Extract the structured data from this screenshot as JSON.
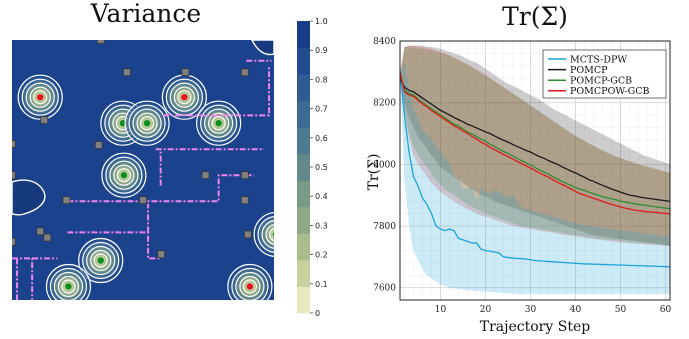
{
  "chart_data": [
    {
      "type": "heatmap",
      "title": "Variance",
      "colorbar": {
        "min": 0.0,
        "max": 1.0,
        "ticks": [
          "0",
          "0.1",
          "0.2",
          "0.3",
          "0.4",
          "0.5",
          "0.6",
          "0.7",
          "0.8",
          "0.9",
          "1.0"
        ],
        "colors": [
          "#e6e8bd",
          "#c6d19f",
          "#a9bc8c",
          "#8ea985",
          "#789a86",
          "#63898a",
          "#4f798e",
          "#3d6a92",
          "#2e5b94",
          "#214c90",
          "#173d86"
        ]
      },
      "background_value": 0.95,
      "grid_x": [
        0,
        100
      ],
      "grid_y": [
        0,
        100
      ],
      "colors": {
        "field": "#1b428c",
        "contour": "#ffffff",
        "path": "#ee82ee",
        "sensor": "#808080",
        "target_red": "#e8141b",
        "target_green": "#0b8f1c"
      },
      "low_variance_peaks": [
        {
          "x": 11.2,
          "y": 78,
          "marker": "red"
        },
        {
          "x": 44,
          "y": 68,
          "marker": "green"
        },
        {
          "x": 53.6,
          "y": 68,
          "marker": "green"
        },
        {
          "x": 68.4,
          "y": 78,
          "marker": "red"
        },
        {
          "x": 82,
          "y": 68,
          "marker": "green"
        },
        {
          "x": 44.4,
          "y": 48,
          "marker": "green"
        },
        {
          "x": 35.2,
          "y": 15.2,
          "marker": "green"
        },
        {
          "x": 22.4,
          "y": 5.2,
          "marker": "green"
        },
        {
          "x": 104.8,
          "y": 25.2,
          "marker": "green"
        },
        {
          "x": 94.4,
          "y": 5.2,
          "marker": "red"
        }
      ],
      "sensors": [
        [
          35.2,
          100
        ],
        [
          45.6,
          87.6
        ],
        [
          68.8,
          87.6
        ],
        [
          92.4,
          87.6
        ],
        [
          12.8,
          69.2
        ],
        [
          34.4,
          59.6
        ],
        [
          0,
          60
        ],
        [
          0,
          48
        ],
        [
          76.8,
          48
        ],
        [
          92.4,
          48
        ],
        [
          0,
          22.4
        ],
        [
          21.6,
          38.4
        ],
        [
          52,
          38.4
        ],
        [
          92.4,
          38.4
        ],
        [
          106.4,
          48
        ],
        [
          11.2,
          26.4
        ],
        [
          59.2,
          17.6
        ],
        [
          14,
          24
        ],
        [
          93.6,
          25.2
        ],
        [
          106.4,
          25.2
        ]
      ],
      "paths": [
        [
          [
            0,
            16
          ],
          [
            8,
            16
          ],
          [
            8,
            0
          ]
        ],
        [
          [
            8,
            16
          ],
          [
            18,
            16
          ]
        ],
        [
          [
            2,
            16
          ],
          [
            2,
            0
          ]
        ],
        [
          [
            22,
            26
          ],
          [
            54,
            26
          ],
          [
            54,
            16
          ],
          [
            59,
            16
          ]
        ],
        [
          [
            54,
            26
          ],
          [
            54,
            37
          ]
        ],
        [
          [
            22,
            38
          ],
          [
            82,
            38
          ],
          [
            82,
            48
          ],
          [
            96,
            48
          ]
        ],
        [
          [
            57,
            58
          ],
          [
            100,
            58
          ]
        ],
        [
          [
            60,
            71
          ],
          [
            102,
            71
          ],
          [
            102,
            90
          ]
        ],
        [
          [
            93,
            92
          ],
          [
            103,
            92
          ]
        ],
        [
          [
            59,
            44
          ],
          [
            59,
            58
          ]
        ]
      ]
    },
    {
      "type": "line",
      "title": "Tr(Σ)",
      "xlabel": "Trajectory Step",
      "ylabel": "Tr(Σ)",
      "xlim": [
        1,
        61
      ],
      "ylim": [
        7560,
        8400
      ],
      "xticks": [
        10,
        20,
        30,
        40,
        50,
        60
      ],
      "yticks": [
        7600,
        7800,
        8000,
        8200,
        8400
      ],
      "grid": true,
      "legend_position": "top-right",
      "x": [
        1,
        2,
        3,
        4,
        5,
        6,
        7,
        8,
        9,
        10,
        11,
        12,
        13,
        14,
        15,
        16,
        17,
        18,
        19,
        20,
        21,
        22,
        23,
        24,
        25,
        26,
        27,
        28,
        29,
        30,
        31,
        32,
        33,
        34,
        35,
        36,
        37,
        38,
        39,
        40,
        41,
        42,
        43,
        44,
        45,
        46,
        47,
        48,
        49,
        50,
        51,
        52,
        53,
        54,
        55,
        56,
        57,
        58,
        59,
        60,
        61
      ],
      "series": [
        {
          "name": "MCTS-DPW",
          "color": "#1aa3dc",
          "mean": [
            8300,
            8160,
            8040,
            7960,
            7930,
            7890,
            7870,
            7840,
            7800,
            7790,
            7785,
            7790,
            7785,
            7760,
            7755,
            7750,
            7745,
            7745,
            7725,
            7720,
            7718,
            7716,
            7712,
            7700,
            7698,
            7696,
            7695,
            7694,
            7693,
            7690,
            7688,
            7687,
            7686,
            7685,
            7684,
            7683,
            7682,
            7681,
            7680,
            7679,
            7678,
            7677,
            7677,
            7676,
            7676,
            7675,
            7675,
            7674,
            7674,
            7673,
            7673,
            7672,
            7672,
            7671,
            7671,
            7670,
            7670,
            7669,
            7669,
            7668,
            7668
          ],
          "lower": [
            8300,
            7950,
            7800,
            7720,
            7690,
            7660,
            7640,
            7630,
            7620,
            7610,
            7605,
            7600,
            7598,
            7596,
            7594,
            7592,
            7590,
            7589,
            7588,
            7587,
            7586,
            7585,
            7584,
            7583,
            7582,
            7581,
            7580,
            7580,
            7580,
            7580,
            7580,
            7580,
            7580,
            7580,
            7580,
            7580,
            7580,
            7580,
            7580,
            7580,
            7580,
            7580,
            7580,
            7580,
            7580,
            7580,
            7580,
            7580,
            7580,
            7580,
            7580,
            7580,
            7580,
            7580,
            7580,
            7580,
            7580,
            7580,
            7580,
            7580,
            7580
          ],
          "upper": [
            8300,
            8330,
            8250,
            8180,
            8150,
            8110,
            8100,
            8080,
            8060,
            8040,
            8020,
            8000,
            7960,
            7950,
            7920,
            7920,
            7930,
            7880,
            7920,
            7915,
            7900,
            7920,
            7910,
            7900,
            7890,
            7900,
            7880,
            7860,
            7855,
            7850,
            7846,
            7842,
            7838,
            7834,
            7830,
            7826,
            7822,
            7818,
            7814,
            7810,
            7806,
            7802,
            7800,
            7798,
            7796,
            7794,
            7792,
            7790,
            7788,
            7786,
            7784,
            7782,
            7780,
            7778,
            7776,
            7774,
            7772,
            7770,
            7768,
            7766,
            7765
          ]
        },
        {
          "name": "POMCP",
          "color": "#1a1a1a",
          "mean": [
            8280,
            8250,
            8240,
            8235,
            8225,
            8215,
            8205,
            8195,
            8185,
            8175,
            8168,
            8160,
            8152,
            8145,
            8138,
            8130,
            8125,
            8118,
            8112,
            8105,
            8100,
            8092,
            8085,
            8078,
            8072,
            8065,
            8058,
            8052,
            8045,
            8040,
            8032,
            8025,
            8020,
            8012,
            8006,
            8000,
            7992,
            7985,
            7978,
            7972,
            7965,
            7958,
            7950,
            7945,
            7938,
            7932,
            7926,
            7920,
            7915,
            7910,
            7905,
            7900,
            7898,
            7895,
            7892,
            7890,
            7888,
            7886,
            7884,
            7882,
            7880
          ],
          "lower": [
            8280,
            8200,
            8150,
            8120,
            8090,
            8070,
            8050,
            8030,
            8010,
            7990,
            7980,
            7970,
            7960,
            7950,
            7940,
            7930,
            7920,
            7910,
            7900,
            7895,
            7890,
            7880,
            7875,
            7870,
            7865,
            7860,
            7855,
            7850,
            7845,
            7840,
            7835,
            7830,
            7825,
            7820,
            7815,
            7810,
            7805,
            7800,
            7795,
            7790,
            7785,
            7780,
            7775,
            7770,
            7768,
            7766,
            7764,
            7762,
            7760,
            7758,
            7756,
            7754,
            7752,
            7750,
            7748,
            7746,
            7744,
            7742,
            7740,
            7738,
            7736
          ],
          "upper": [
            8280,
            8380,
            8385,
            8385,
            8385,
            8385,
            8382,
            8380,
            8378,
            8375,
            8370,
            8365,
            8360,
            8355,
            8350,
            8340,
            8335,
            8330,
            8320,
            8310,
            8300,
            8290,
            8280,
            8270,
            8262,
            8255,
            8248,
            8240,
            8232,
            8225,
            8218,
            8210,
            8200,
            8190,
            8180,
            8172,
            8165,
            8158,
            8150,
            8142,
            8135,
            8128,
            8120,
            8112,
            8105,
            8098,
            8090,
            8082,
            8075,
            8068,
            8060,
            8052,
            8045,
            8038,
            8030,
            8025,
            8020,
            8015,
            8010,
            8005,
            8000
          ]
        },
        {
          "name": "POMCP-GCB",
          "color": "#2e8b2e",
          "mean": [
            8290,
            8240,
            8230,
            8225,
            8212,
            8200,
            8190,
            8180,
            8170,
            8160,
            8150,
            8140,
            8130,
            8125,
            8115,
            8105,
            8098,
            8090,
            8082,
            8075,
            8065,
            8058,
            8050,
            8042,
            8035,
            8028,
            8020,
            8012,
            8005,
            7998,
            7990,
            7982,
            7975,
            7968,
            7960,
            7952,
            7945,
            7938,
            7932,
            7925,
            7920,
            7915,
            7910,
            7905,
            7900,
            7895,
            7892,
            7888,
            7885,
            7880,
            7878,
            7875,
            7872,
            7870,
            7868,
            7866,
            7864,
            7862,
            7860,
            7858,
            7856
          ],
          "lower": [
            8290,
            8180,
            8100,
            8060,
            8030,
            8010,
            7990,
            7970,
            7950,
            7935,
            7920,
            7910,
            7900,
            7890,
            7880,
            7870,
            7862,
            7855,
            7848,
            7840,
            7835,
            7830,
            7825,
            7820,
            7815,
            7810,
            7805,
            7800,
            7798,
            7795,
            7792,
            7790,
            7788,
            7785,
            7782,
            7780,
            7778,
            7775,
            7772,
            7770,
            7768,
            7766,
            7764,
            7762,
            7760,
            7758,
            7756,
            7755,
            7754,
            7752,
            7750,
            7748,
            7746,
            7745,
            7744,
            7743,
            7742,
            7741,
            7740,
            7738,
            7735
          ],
          "upper": [
            8290,
            8380,
            8380,
            8378,
            8376,
            8374,
            8372,
            8370,
            8366,
            8362,
            8358,
            8352,
            8345,
            8338,
            8330,
            8322,
            8314,
            8305,
            8296,
            8288,
            8278,
            8270,
            8260,
            8250,
            8240,
            8230,
            8222,
            8212,
            8202,
            8192,
            8182,
            8172,
            8162,
            8152,
            8142,
            8132,
            8122,
            8112,
            8102,
            8092,
            8084,
            8076,
            8068,
            8060,
            8052,
            8045,
            8038,
            8032,
            8026,
            8020,
            8015,
            8010,
            8005,
            8000,
            7996,
            7992,
            7988,
            7984,
            7980,
            7976,
            7972
          ]
        },
        {
          "name": "POMCPOW-GCB",
          "color": "#e31a1c",
          "mean": [
            8300,
            8235,
            8225,
            8220,
            8208,
            8196,
            8186,
            8174,
            8165,
            8155,
            8145,
            8135,
            8125,
            8118,
            8108,
            8100,
            8090,
            8082,
            8072,
            8065,
            8055,
            8048,
            8040,
            8032,
            8025,
            8018,
            8010,
            8002,
            7995,
            7988,
            7980,
            7972,
            7965,
            7958,
            7950,
            7942,
            7935,
            7928,
            7920,
            7912,
            7905,
            7900,
            7895,
            7890,
            7885,
            7880,
            7875,
            7870,
            7866,
            7862,
            7858,
            7855,
            7852,
            7850,
            7848,
            7846,
            7845,
            7844,
            7842,
            7841,
            7840
          ],
          "lower": [
            8300,
            8170,
            8080,
            8030,
            8000,
            7980,
            7960,
            7940,
            7925,
            7910,
            7900,
            7890,
            7880,
            7870,
            7862,
            7855,
            7848,
            7840,
            7835,
            7830,
            7825,
            7820,
            7815,
            7810,
            7805,
            7800,
            7798,
            7795,
            7792,
            7790,
            7788,
            7785,
            7782,
            7780,
            7778,
            7775,
            7772,
            7770,
            7768,
            7766,
            7764,
            7762,
            7760,
            7758,
            7756,
            7754,
            7752,
            7750,
            7748,
            7746,
            7745,
            7744,
            7743,
            7742,
            7741,
            7740,
            7739,
            7738,
            7737,
            7736,
            7735
          ],
          "upper": [
            8300,
            8380,
            8385,
            8385,
            8382,
            8380,
            8378,
            8375,
            8370,
            8365,
            8360,
            8354,
            8348,
            8340,
            8332,
            8324,
            8316,
            8308,
            8300,
            8290,
            8280,
            8270,
            8260,
            8250,
            8240,
            8230,
            8220,
            8210,
            8200,
            8190,
            8180,
            8170,
            8160,
            8150,
            8140,
            8130,
            8120,
            8110,
            8100,
            8092,
            8084,
            8076,
            8068,
            8060,
            8052,
            8045,
            8038,
            8032,
            8026,
            8020,
            8015,
            8010,
            8005,
            8000,
            7996,
            7992,
            7988,
            7984,
            7980,
            7976,
            7972
          ]
        }
      ]
    }
  ]
}
